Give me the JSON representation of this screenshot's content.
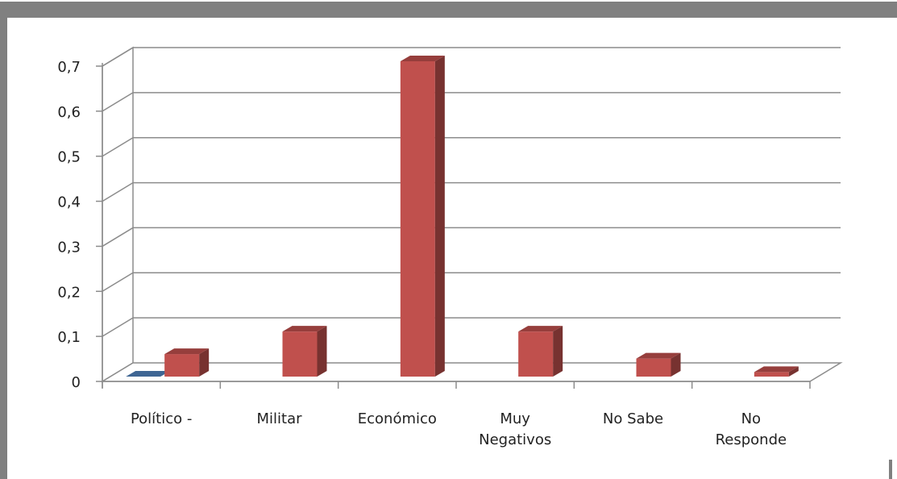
{
  "chart_data": {
    "type": "bar",
    "style": "3d-clustered-column",
    "categories": [
      [
        "Político -"
      ],
      [
        "Militar"
      ],
      [
        "Económico"
      ],
      [
        "Muy",
        "Negativos"
      ],
      [
        "No Sabe"
      ],
      [
        "No",
        "Responde"
      ]
    ],
    "series": [
      {
        "color": "#4F81BD",
        "values": [
          0,
          null,
          null,
          null,
          null,
          null
        ]
      },
      {
        "color": "#C0504D",
        "values": [
          0.05,
          0.1,
          0.7,
          0.1,
          0.04,
          0.01
        ]
      }
    ],
    "yticks": [
      "0",
      "0,1",
      "0,2",
      "0,3",
      "0,4",
      "0,5",
      "0,6",
      "0,7"
    ],
    "ylim": [
      0,
      0.7
    ],
    "grid": true,
    "legend": "none",
    "border_color": "#808080"
  }
}
